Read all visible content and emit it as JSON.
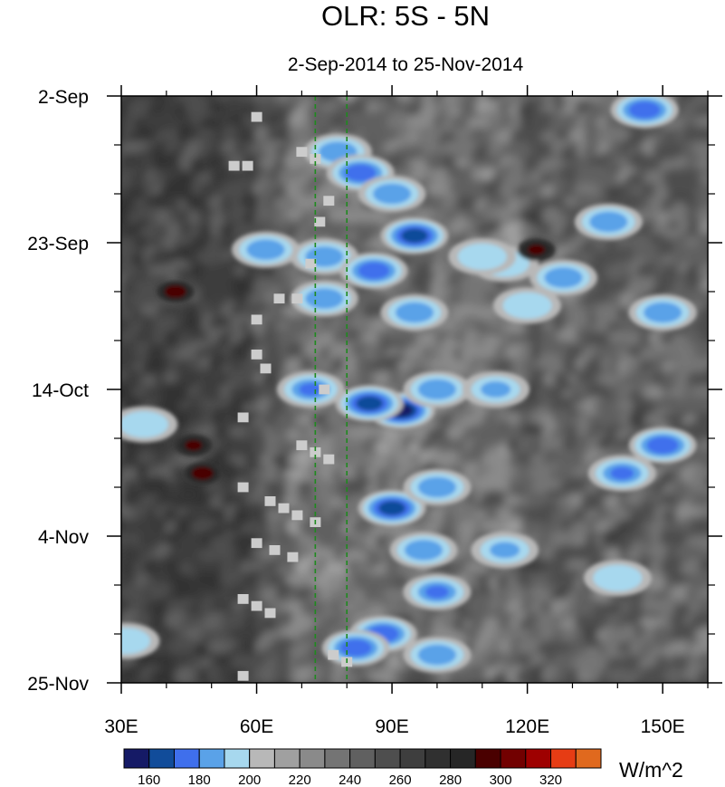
{
  "chart_data": {
    "type": "heatmap",
    "title": "OLR: 5S - 5N",
    "subtitle": "2-Sep-2014 to 25-Nov-2014",
    "x_axis": {
      "min": 30,
      "max": 160,
      "ticks": [
        {
          "value": 30,
          "label": "30E"
        },
        {
          "value": 60,
          "label": "60E"
        },
        {
          "value": 90,
          "label": "90E"
        },
        {
          "value": 120,
          "label": "120E"
        },
        {
          "value": 150,
          "label": "150E"
        }
      ],
      "minor_step": 10
    },
    "y_axis": {
      "start": "2014-09-02",
      "end": "2014-11-25",
      "ticks": [
        {
          "value": "2014-09-02",
          "label": "2-Sep"
        },
        {
          "value": "2014-09-23",
          "label": "23-Sep"
        },
        {
          "value": "2014-10-14",
          "label": "14-Oct"
        },
        {
          "value": "2014-11-04",
          "label": "4-Nov"
        },
        {
          "value": "2014-11-25",
          "label": "25-Nov"
        }
      ],
      "minor_step_days": 7,
      "direction": "time increases downward"
    },
    "reference_lines": [
      {
        "longitude": 73,
        "color": "#1e8a1e",
        "style": "dashed"
      },
      {
        "longitude": 80,
        "color": "#1e8a1e",
        "style": "dashed"
      }
    ],
    "colorbar": {
      "unit": "W/m^2",
      "levels": [
        150,
        160,
        170,
        180,
        190,
        200,
        210,
        220,
        230,
        240,
        250,
        260,
        270,
        280,
        290,
        300,
        310,
        320,
        330
      ],
      "labels": [
        "160",
        "180",
        "200",
        "220",
        "240",
        "260",
        "280",
        "300",
        "320"
      ],
      "colors": [
        "#151a66",
        "#114c9a",
        "#3f6fec",
        "#5aa2e8",
        "#a7d8ee",
        "#b8b8b8",
        "#a0a0a0",
        "#8a8a8a",
        "#747474",
        "#606060",
        "#4e4e4e",
        "#3e3e3e",
        "#303030",
        "#262626",
        "#4a0000",
        "#720000",
        "#9e0000",
        "#e63c14",
        "#e0691e"
      ]
    },
    "missing_color": "#cccccc",
    "convective_features": [
      {
        "lon": 146,
        "date": "2014-09-04",
        "value": 172
      },
      {
        "lon": 78,
        "date": "2014-09-10",
        "value": 185
      },
      {
        "lon": 83,
        "date": "2014-09-13",
        "value": 178
      },
      {
        "lon": 90,
        "date": "2014-09-16",
        "value": 185
      },
      {
        "lon": 95,
        "date": "2014-09-22",
        "value": 168
      },
      {
        "lon": 115,
        "date": "2014-09-26",
        "value": 196
      },
      {
        "lon": 110,
        "date": "2014-09-25",
        "value": 196
      },
      {
        "lon": 138,
        "date": "2014-09-20",
        "value": 186
      },
      {
        "lon": 75,
        "date": "2014-09-25",
        "value": 182
      },
      {
        "lon": 86,
        "date": "2014-09-27",
        "value": 175
      },
      {
        "lon": 62,
        "date": "2014-09-24",
        "value": 188
      },
      {
        "lon": 75,
        "date": "2014-10-01",
        "value": 188
      },
      {
        "lon": 95,
        "date": "2014-10-03",
        "value": 188
      },
      {
        "lon": 128,
        "date": "2014-09-28",
        "value": 188
      },
      {
        "lon": 150,
        "date": "2014-10-03",
        "value": 188
      },
      {
        "lon": 120,
        "date": "2014-10-02",
        "value": 195
      },
      {
        "lon": 72,
        "date": "2014-10-14",
        "value": 180
      },
      {
        "lon": 92,
        "date": "2014-10-17",
        "value": 158
      },
      {
        "lon": 85,
        "date": "2014-10-16",
        "value": 168
      },
      {
        "lon": 100,
        "date": "2014-10-14",
        "value": 182
      },
      {
        "lon": 113,
        "date": "2014-10-14",
        "value": 190
      },
      {
        "lon": 35,
        "date": "2014-10-19",
        "value": 195
      },
      {
        "lon": 150,
        "date": "2014-10-22",
        "value": 178
      },
      {
        "lon": 141,
        "date": "2014-10-26",
        "value": 180
      },
      {
        "lon": 90,
        "date": "2014-10-31",
        "value": 162
      },
      {
        "lon": 100,
        "date": "2014-10-28",
        "value": 182
      },
      {
        "lon": 97,
        "date": "2014-11-06",
        "value": 182
      },
      {
        "lon": 115,
        "date": "2014-11-06",
        "value": 190
      },
      {
        "lon": 140,
        "date": "2014-11-10",
        "value": 196
      },
      {
        "lon": 100,
        "date": "2014-11-12",
        "value": 180
      },
      {
        "lon": 88,
        "date": "2014-11-18",
        "value": 176
      },
      {
        "lon": 82,
        "date": "2014-11-20",
        "value": 178
      },
      {
        "lon": 100,
        "date": "2014-11-21",
        "value": 188
      },
      {
        "lon": 31,
        "date": "2014-11-19",
        "value": 192
      }
    ],
    "suppressed_convection_features": [
      {
        "lon": 42,
        "date": "2014-09-30",
        "value": 292
      },
      {
        "lon": 46,
        "date": "2014-10-22",
        "value": 290
      },
      {
        "lon": 48,
        "date": "2014-10-26",
        "value": 292
      },
      {
        "lon": 122,
        "date": "2014-09-24",
        "value": 290
      }
    ],
    "missing_data_cells": [
      {
        "lon": 60,
        "date": "2014-09-05"
      },
      {
        "lon": 55,
        "date": "2014-09-12"
      },
      {
        "lon": 58,
        "date": "2014-09-12"
      },
      {
        "lon": 70,
        "date": "2014-09-10"
      },
      {
        "lon": 73,
        "date": "2014-09-11"
      },
      {
        "lon": 76,
        "date": "2014-09-17"
      },
      {
        "lon": 74,
        "date": "2014-09-20"
      },
      {
        "lon": 72,
        "date": "2014-09-26"
      },
      {
        "lon": 69,
        "date": "2014-10-01"
      },
      {
        "lon": 65,
        "date": "2014-10-01"
      },
      {
        "lon": 60,
        "date": "2014-10-04"
      },
      {
        "lon": 60,
        "date": "2014-10-09"
      },
      {
        "lon": 62,
        "date": "2014-10-11"
      },
      {
        "lon": 75,
        "date": "2014-10-14"
      },
      {
        "lon": 57,
        "date": "2014-10-18"
      },
      {
        "lon": 70,
        "date": "2014-10-22"
      },
      {
        "lon": 73,
        "date": "2014-10-23"
      },
      {
        "lon": 76,
        "date": "2014-10-24"
      },
      {
        "lon": 57,
        "date": "2014-10-28"
      },
      {
        "lon": 63,
        "date": "2014-10-30"
      },
      {
        "lon": 66,
        "date": "2014-10-31"
      },
      {
        "lon": 69,
        "date": "2014-11-01"
      },
      {
        "lon": 73,
        "date": "2014-11-02"
      },
      {
        "lon": 60,
        "date": "2014-11-05"
      },
      {
        "lon": 64,
        "date": "2014-11-06"
      },
      {
        "lon": 68,
        "date": "2014-11-07"
      },
      {
        "lon": 57,
        "date": "2014-11-13"
      },
      {
        "lon": 60,
        "date": "2014-11-14"
      },
      {
        "lon": 63,
        "date": "2014-11-15"
      },
      {
        "lon": 77,
        "date": "2014-11-21"
      },
      {
        "lon": 80,
        "date": "2014-11-22"
      },
      {
        "lon": 57,
        "date": "2014-11-24"
      }
    ]
  }
}
